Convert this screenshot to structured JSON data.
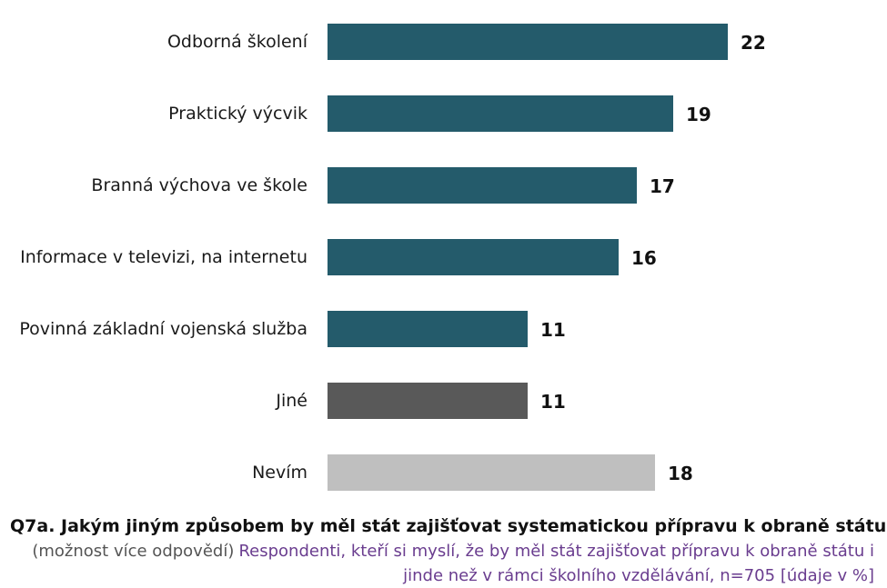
{
  "chart_data": {
    "type": "bar",
    "orientation": "horizontal",
    "categories": [
      "Odborná školení",
      "Praktický výcvik",
      "Branná výchova ve škole",
      "Informace v televizi, na internetu",
      "Povinná základní vojenská služba",
      "Jiné",
      "Nevím"
    ],
    "values": [
      22,
      19,
      17,
      16,
      11,
      11,
      18
    ],
    "colors": [
      "#245b6b",
      "#245b6b",
      "#245b6b",
      "#245b6b",
      "#245b6b",
      "#595959",
      "#bfbfbf"
    ],
    "xlim": [
      0,
      25
    ],
    "grid": false,
    "legend": "none"
  },
  "caption": {
    "question": "Q7a. Jakým jiným způsobem by měl stát zajišťovat systematickou přípravu k obraně státu?",
    "note": "(možnost více odpovědí)",
    "respondents": "Respondenti, kteří si myslí, že by měl stát zajišťovat přípravu k obraně státu i jinde než v rámci školního vzdělávání, n=705 [údaje v %]"
  }
}
